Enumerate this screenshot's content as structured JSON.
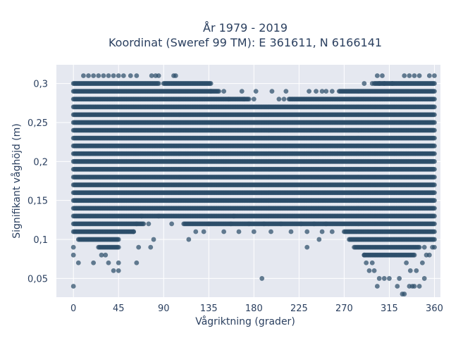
{
  "chart_data": {
    "type": "scatter",
    "title": [
      "År 1979 - 2019",
      "Koordinat (Sweref 99 TM): E 361611, N 6166141"
    ],
    "xlabel": "Vågriktning (grader)",
    "ylabel": "Signifikant våghöjd (m)",
    "xlim": [
      -17,
      366
    ],
    "ylim": [
      0.026,
      0.324
    ],
    "x_ticks": [
      0,
      45,
      90,
      135,
      180,
      225,
      270,
      315,
      360
    ],
    "x_tick_labels": [
      "0",
      "45",
      "90",
      "135",
      "180",
      "225",
      "270",
      "315",
      "360"
    ],
    "y_ticks": [
      0.05,
      0.1,
      0.15,
      0.2,
      0.25,
      0.3
    ],
    "y_tick_labels": [
      "0,05",
      "0,1",
      "0,15",
      "0,2",
      "0,25",
      "0,3"
    ],
    "grid": true,
    "marker_color": "#2d4e6a",
    "background": "#e5e8f0",
    "bands": [
      {
        "y": 0.3,
        "x_ranges": [
          [
            0,
            85
          ],
          [
            90,
            137
          ],
          [
            300,
            360
          ]
        ]
      },
      {
        "y": 0.29,
        "x_ranges": [
          [
            0,
            145
          ],
          [
            265,
            360
          ]
        ]
      },
      {
        "y": 0.28,
        "x_ranges": [
          [
            0,
            175
          ],
          [
            215,
            360
          ]
        ]
      },
      {
        "y": 0.27,
        "x_ranges": [
          [
            0,
            360
          ]
        ]
      },
      {
        "y": 0.26,
        "x_ranges": [
          [
            0,
            360
          ]
        ]
      },
      {
        "y": 0.25,
        "x_ranges": [
          [
            0,
            360
          ]
        ]
      },
      {
        "y": 0.24,
        "x_ranges": [
          [
            0,
            360
          ]
        ]
      },
      {
        "y": 0.23,
        "x_ranges": [
          [
            0,
            360
          ]
        ]
      },
      {
        "y": 0.22,
        "x_ranges": [
          [
            0,
            360
          ]
        ]
      },
      {
        "y": 0.21,
        "x_ranges": [
          [
            0,
            360
          ]
        ]
      },
      {
        "y": 0.2,
        "x_ranges": [
          [
            0,
            360
          ]
        ]
      },
      {
        "y": 0.19,
        "x_ranges": [
          [
            0,
            360
          ]
        ]
      },
      {
        "y": 0.18,
        "x_ranges": [
          [
            0,
            360
          ]
        ]
      },
      {
        "y": 0.17,
        "x_ranges": [
          [
            0,
            360
          ]
        ]
      },
      {
        "y": 0.16,
        "x_ranges": [
          [
            0,
            360
          ]
        ]
      },
      {
        "y": 0.15,
        "x_ranges": [
          [
            0,
            360
          ]
        ]
      },
      {
        "y": 0.14,
        "x_ranges": [
          [
            0,
            360
          ]
        ]
      },
      {
        "y": 0.13,
        "x_ranges": [
          [
            0,
            360
          ]
        ]
      },
      {
        "y": 0.12,
        "x_ranges": [
          [
            0,
            70
          ],
          [
            110,
            360
          ]
        ]
      },
      {
        "y": 0.11,
        "x_ranges": [
          [
            0,
            60
          ],
          [
            270,
            360
          ]
        ]
      },
      {
        "y": 0.1,
        "x_ranges": [
          [
            5,
            45
          ],
          [
            275,
            360
          ]
        ]
      },
      {
        "y": 0.09,
        "x_ranges": [
          [
            25,
            45
          ],
          [
            280,
            345
          ]
        ]
      },
      {
        "y": 0.08,
        "x_ranges": [
          [
            290,
            340
          ]
        ]
      }
    ],
    "scattered_points": [
      [
        0,
        0.04
      ],
      [
        188,
        0.05
      ],
      [
        0,
        0.08
      ],
      [
        0,
        0.09
      ],
      [
        5,
        0.07
      ],
      [
        20,
        0.07
      ],
      [
        28,
        0.08
      ],
      [
        35,
        0.07
      ],
      [
        40,
        0.06
      ],
      [
        45,
        0.06
      ],
      [
        45,
        0.07
      ],
      [
        32,
        0.08
      ],
      [
        63,
        0.07
      ],
      [
        65,
        0.09
      ],
      [
        77,
        0.09
      ],
      [
        60,
        0.11
      ],
      [
        63,
        0.12
      ],
      [
        68,
        0.13
      ],
      [
        75,
        0.12
      ],
      [
        80,
        0.1
      ],
      [
        85,
        0.13
      ],
      [
        98,
        0.12
      ],
      [
        115,
        0.1
      ],
      [
        122,
        0.11
      ],
      [
        130,
        0.11
      ],
      [
        135,
        0.12
      ],
      [
        150,
        0.11
      ],
      [
        157,
        0.12
      ],
      [
        160,
        0.13
      ],
      [
        165,
        0.11
      ],
      [
        175,
        0.12
      ],
      [
        180,
        0.11
      ],
      [
        190,
        0.12
      ],
      [
        197,
        0.11
      ],
      [
        207,
        0.12
      ],
      [
        217,
        0.11
      ],
      [
        227,
        0.12
      ],
      [
        233,
        0.11
      ],
      [
        240,
        0.12
      ],
      [
        248,
        0.11
      ],
      [
        233,
        0.09
      ],
      [
        245,
        0.1
      ],
      [
        252,
        0.12
      ],
      [
        258,
        0.11
      ],
      [
        10,
        0.31
      ],
      [
        15,
        0.31
      ],
      [
        20,
        0.31
      ],
      [
        25,
        0.31
      ],
      [
        30,
        0.31
      ],
      [
        35,
        0.31
      ],
      [
        40,
        0.31
      ],
      [
        45,
        0.31
      ],
      [
        50,
        0.31
      ],
      [
        57,
        0.31
      ],
      [
        63,
        0.31
      ],
      [
        78,
        0.31
      ],
      [
        82,
        0.31
      ],
      [
        85,
        0.31
      ],
      [
        100,
        0.31
      ],
      [
        102,
        0.31
      ],
      [
        137,
        0.29
      ],
      [
        150,
        0.29
      ],
      [
        168,
        0.29
      ],
      [
        182,
        0.29
      ],
      [
        198,
        0.29
      ],
      [
        212,
        0.29
      ],
      [
        235,
        0.29
      ],
      [
        242,
        0.29
      ],
      [
        248,
        0.29
      ],
      [
        252,
        0.29
      ],
      [
        258,
        0.29
      ],
      [
        155,
        0.28
      ],
      [
        170,
        0.28
      ],
      [
        180,
        0.28
      ],
      [
        205,
        0.28
      ],
      [
        210,
        0.28
      ],
      [
        290,
        0.3
      ],
      [
        298,
        0.3
      ],
      [
        305,
        0.3
      ],
      [
        310,
        0.3
      ],
      [
        318,
        0.3
      ],
      [
        303,
        0.31
      ],
      [
        308,
        0.31
      ],
      [
        330,
        0.31
      ],
      [
        335,
        0.31
      ],
      [
        340,
        0.31
      ],
      [
        345,
        0.31
      ],
      [
        355,
        0.31
      ],
      [
        360,
        0.31
      ],
      [
        290,
        0.08
      ],
      [
        292,
        0.07
      ],
      [
        295,
        0.06
      ],
      [
        298,
        0.07
      ],
      [
        300,
        0.06
      ],
      [
        305,
        0.05
      ],
      [
        303,
        0.04
      ],
      [
        310,
        0.05
      ],
      [
        315,
        0.05
      ],
      [
        323,
        0.04
      ],
      [
        325,
        0.05
      ],
      [
        328,
        0.03
      ],
      [
        330,
        0.03
      ],
      [
        335,
        0.04
      ],
      [
        338,
        0.04
      ],
      [
        340,
        0.04
      ],
      [
        345,
        0.04
      ],
      [
        350,
        0.05
      ],
      [
        332,
        0.07
      ],
      [
        336,
        0.06
      ],
      [
        342,
        0.06
      ],
      [
        348,
        0.07
      ],
      [
        355,
        0.08
      ],
      [
        358,
        0.09
      ],
      [
        360,
        0.09
      ],
      [
        352,
        0.08
      ],
      [
        350,
        0.09
      ]
    ]
  }
}
